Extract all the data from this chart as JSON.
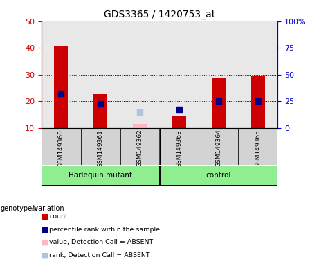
{
  "title": "GDS3365 / 1420753_at",
  "samples": [
    "GSM149360",
    "GSM149361",
    "GSM149362",
    "GSM149363",
    "GSM149364",
    "GSM149365"
  ],
  "count_values": [
    40.5,
    23.0,
    null,
    14.5,
    29.0,
    29.5
  ],
  "count_absent": [
    null,
    null,
    11.5,
    null,
    null,
    null
  ],
  "rank_values": [
    23.0,
    19.0,
    null,
    17.0,
    20.0,
    20.0
  ],
  "rank_absent": [
    null,
    null,
    16.0,
    null,
    null,
    null
  ],
  "ylim_left": [
    10,
    50
  ],
  "ylim_right": [
    0,
    100
  ],
  "left_ticks": [
    10,
    20,
    30,
    40,
    50
  ],
  "right_ticks": [
    0,
    25,
    50,
    75,
    100
  ],
  "right_tick_labels": [
    "0",
    "25",
    "50",
    "75",
    "100%"
  ],
  "bar_color": "#CC0000",
  "bar_absent_color": "#FFB6C1",
  "rank_color": "#00008B",
  "rank_absent_color": "#B0C4DE",
  "bar_width": 0.35,
  "dot_size": 35,
  "plot_bg": "#D3D3D3",
  "group_row_bg": "#90EE90",
  "tick_color_left": "#CC0000",
  "tick_color_right": "#0000CC",
  "harlequin_label": "Harlequin mutant",
  "control_label": "control",
  "genotype_label": "genotype/variation",
  "legend_items": [
    {
      "color": "#CC0000",
      "label": "count"
    },
    {
      "color": "#00008B",
      "label": "percentile rank within the sample"
    },
    {
      "color": "#FFB6C1",
      "label": "value, Detection Call = ABSENT"
    },
    {
      "color": "#B0C4DE",
      "label": "rank, Detection Call = ABSENT"
    }
  ]
}
